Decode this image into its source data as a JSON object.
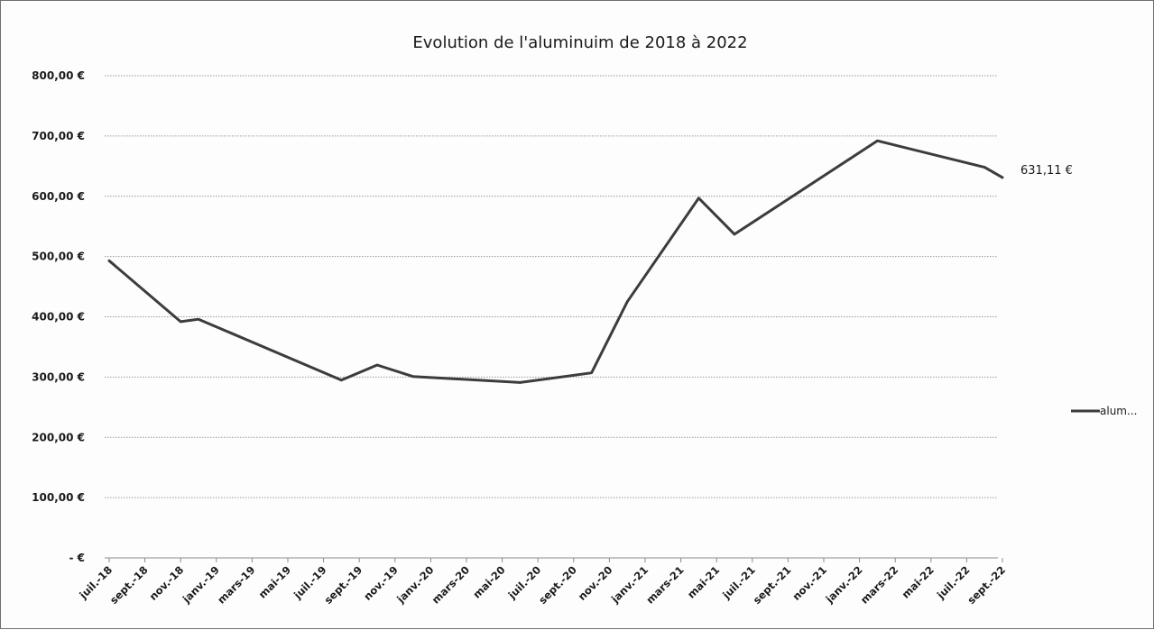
{
  "chart_data": {
    "type": "line",
    "title": "Evolution de l'aluminuim de 2018 à 2022",
    "xlabel": "",
    "ylabel": "",
    "categories": [
      "juil.-18",
      "sept.-18",
      "nov.-18",
      "janv.-19",
      "mars-19",
      "mai-19",
      "juil.-19",
      "sept.-19",
      "nov.-19",
      "janv.-20",
      "mars-20",
      "mai-20",
      "juil.-20",
      "sept.-20",
      "nov.-20",
      "janv.-21",
      "mars-21",
      "mai-21",
      "juil.-21",
      "sept.-21",
      "nov.-21",
      "janv.-22",
      "mars-22",
      "mai-22",
      "juil.-22",
      "sept.-22"
    ],
    "y_ticks": [
      "- €",
      "100,00 €",
      "200,00 €",
      "300,00 €",
      "400,00 €",
      "500,00 €",
      "600,00 €",
      "700,00 €",
      "800,00 €"
    ],
    "ylim": [
      0,
      800
    ],
    "grid": true,
    "legend_position": "right",
    "series": [
      {
        "name": "alum...",
        "color": "#3c3c3c",
        "points": [
          {
            "x": "2018-07",
            "y": 493
          },
          {
            "x": "2018-11",
            "y": 392
          },
          {
            "x": "2018-12",
            "y": 396
          },
          {
            "x": "2019-08",
            "y": 295
          },
          {
            "x": "2019-10",
            "y": 320
          },
          {
            "x": "2019-12",
            "y": 301
          },
          {
            "x": "2020-06",
            "y": 291
          },
          {
            "x": "2020-10",
            "y": 307
          },
          {
            "x": "2020-12",
            "y": 425
          },
          {
            "x": "2021-04",
            "y": 597
          },
          {
            "x": "2021-06",
            "y": 537
          },
          {
            "x": "2022-02",
            "y": 692
          },
          {
            "x": "2022-08",
            "y": 648
          },
          {
            "x": "2022-09",
            "y": 631.11
          }
        ]
      }
    ],
    "data_labels": [
      {
        "text": "631,11 €",
        "x": "2022-09",
        "y": 631.11
      }
    ]
  }
}
